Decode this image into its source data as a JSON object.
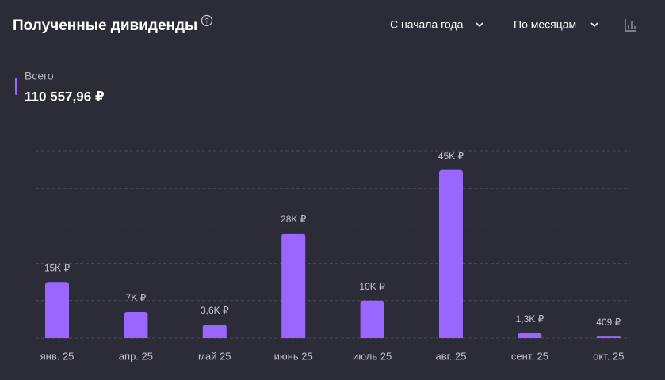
{
  "header": {
    "title": "Полученные дивиденды",
    "period": "С начала года",
    "grouping": "По месяцам"
  },
  "summary": {
    "label": "Всего",
    "value": "110 557,96 ₽"
  },
  "chart_data": {
    "type": "bar",
    "categories": [
      "янв. 25",
      "апр. 25",
      "май 25",
      "июнь 25",
      "июль 25",
      "авг. 25",
      "сент. 25",
      "окт. 25"
    ],
    "values": [
      15000,
      7000,
      3600,
      28000,
      10000,
      45000,
      1300,
      409
    ],
    "value_labels": [
      "15K ₽",
      "7K ₽",
      "3,6K ₽",
      "28K ₽",
      "10K ₽",
      "45K ₽",
      "1,3K ₽",
      "409 ₽"
    ],
    "color": "#9966ff",
    "ylim": [
      0,
      50000
    ],
    "yticks": [
      0,
      10000,
      20000,
      30000,
      40000,
      50000
    ],
    "grid": true
  }
}
